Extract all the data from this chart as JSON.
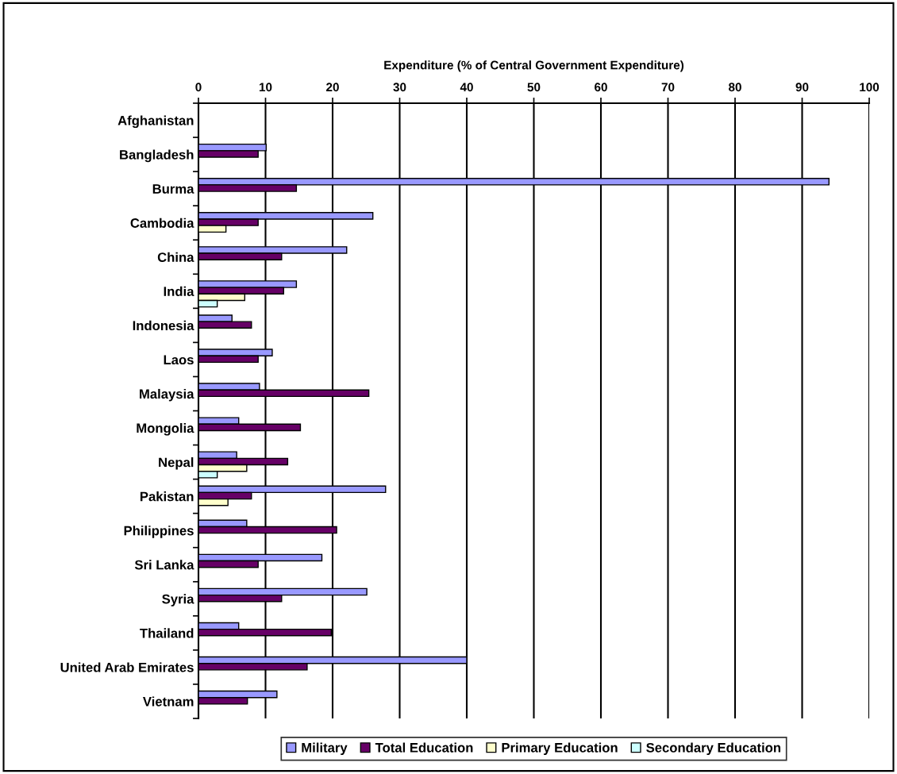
{
  "chart_data": {
    "type": "bar",
    "orientation": "horizontal",
    "xlabel": "Expenditure (% of Central Government Expenditure)",
    "categories": [
      "Afghanistan",
      "Bangladesh",
      "Burma",
      "Cambodia",
      "China",
      "India",
      "Indonesia",
      "Laos",
      "Malaysia",
      "Mongolia",
      "Nepal",
      "Pakistan",
      "Philippines",
      "Sri Lanka",
      "Syria",
      "Thailand",
      "United Arab Emirates",
      "Vietnam"
    ],
    "series": [
      {
        "name": "Military",
        "color": "#9999ff",
        "values": [
          null,
          10.1,
          94,
          26,
          22.1,
          14.6,
          5,
          11,
          9.1,
          6,
          5.7,
          27.9,
          7.2,
          18.4,
          25.1,
          6,
          40,
          11.7
        ]
      },
      {
        "name": "Total Education",
        "color": "#660066",
        "values": [
          null,
          8.9,
          14.6,
          8.9,
          12.4,
          12.7,
          7.9,
          8.9,
          25.4,
          15.2,
          13.3,
          7.9,
          20.6,
          8.9,
          12.4,
          19.8,
          16.2,
          7.3
        ]
      },
      {
        "name": "Primary Education",
        "color": "#ffffcc",
        "values": [
          null,
          null,
          null,
          4.1,
          null,
          6.9,
          null,
          null,
          null,
          null,
          7.2,
          4.4,
          null,
          null,
          null,
          null,
          null,
          null
        ]
      },
      {
        "name": "Secondary Education",
        "color": "#ccffff",
        "values": [
          null,
          null,
          null,
          null,
          null,
          2.8,
          null,
          null,
          null,
          null,
          2.8,
          null,
          null,
          null,
          null,
          null,
          null,
          null
        ]
      }
    ],
    "xlim": [
      0,
      100
    ],
    "xticks": [
      0,
      10,
      20,
      30,
      40,
      50,
      60,
      70,
      80,
      90,
      100
    ],
    "grid": "x",
    "legend": "bottom"
  }
}
